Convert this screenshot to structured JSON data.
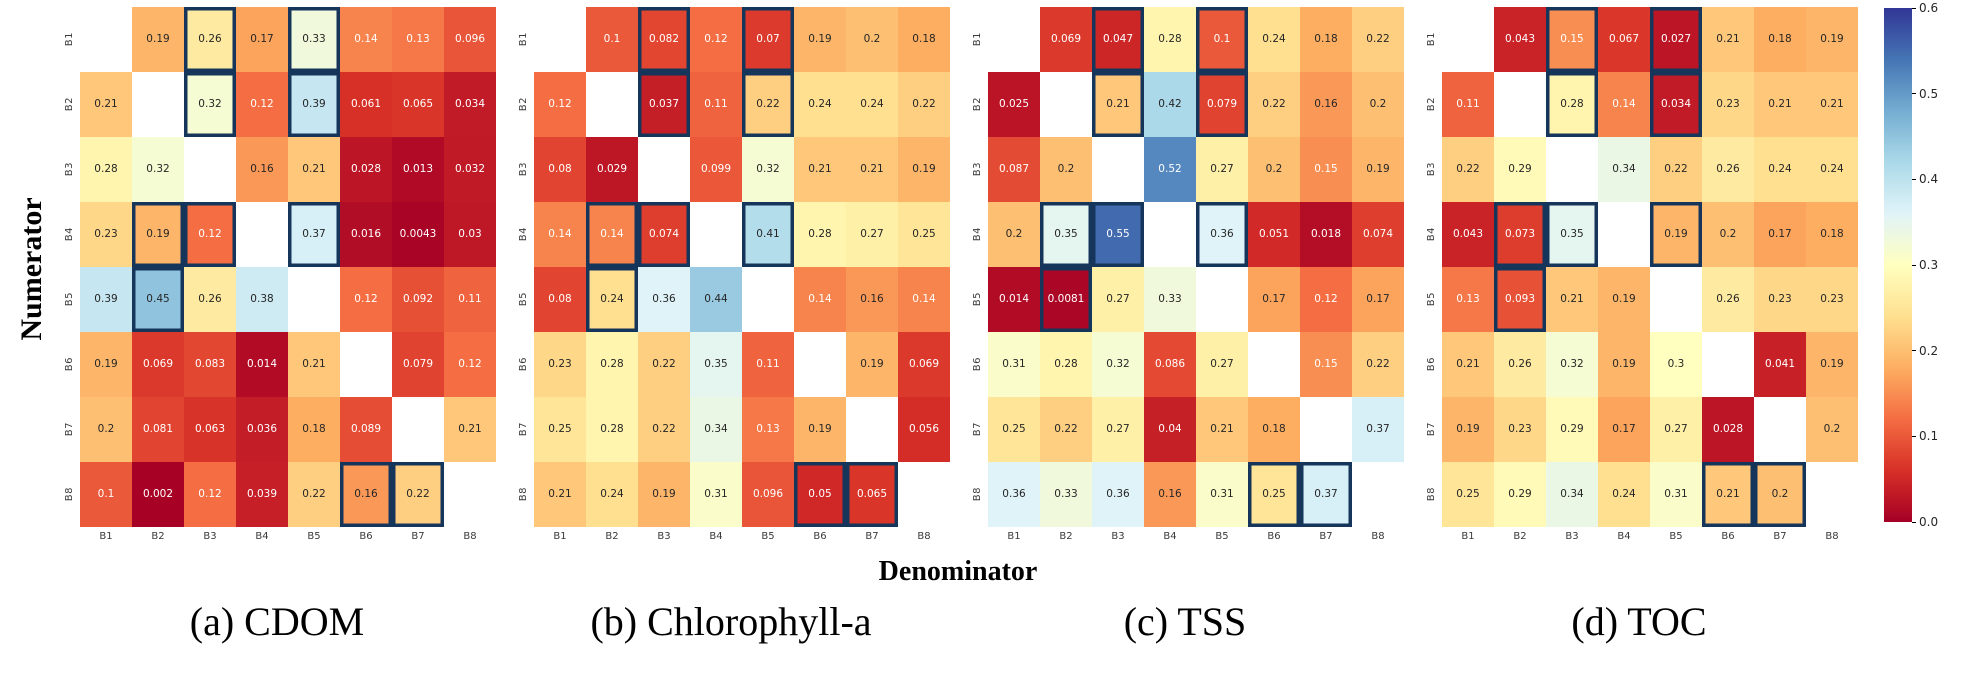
{
  "figure": {
    "ylabel": "Numerator",
    "xlabel": "Denominator",
    "tick_labels": [
      "B1",
      "B2",
      "B3",
      "B4",
      "B5",
      "B6",
      "B7",
      "B8"
    ],
    "highlight_border_color": "#16355b",
    "colorbar": {
      "vmin": 0.0,
      "vmax": 0.6,
      "tick_labels": [
        "0.6",
        "0.5",
        "0.4",
        "0.3",
        "0.2",
        "0.1",
        "0.0"
      ],
      "colormap": "RdYlBu",
      "colormap_stops": [
        "#a50026",
        "#d73027",
        "#f46d43",
        "#fdae61",
        "#fee090",
        "#ffffbf",
        "#e0f3f8",
        "#abd9e9",
        "#74add1",
        "#4575b4",
        "#313695"
      ]
    }
  },
  "chart_data": [
    {
      "type": "heatmap",
      "caption": "(a) CDOM",
      "x_categories": [
        "B1",
        "B2",
        "B3",
        "B4",
        "B5",
        "B6",
        "B7",
        "B8"
      ],
      "y_categories": [
        "B1",
        "B2",
        "B3",
        "B4",
        "B5",
        "B6",
        "B7",
        "B8"
      ],
      "vmin": 0.0,
      "vmax": 0.6,
      "values": [
        [
          null,
          0.19,
          0.26,
          0.17,
          0.33,
          0.14,
          0.13,
          0.096
        ],
        [
          0.21,
          null,
          0.32,
          0.12,
          0.39,
          0.061,
          0.065,
          0.034
        ],
        [
          0.28,
          0.32,
          null,
          0.16,
          0.21,
          0.028,
          0.013,
          0.032
        ],
        [
          0.23,
          0.19,
          0.12,
          null,
          0.37,
          0.016,
          0.0043,
          0.03
        ],
        [
          0.39,
          0.45,
          0.26,
          0.38,
          null,
          0.12,
          0.092,
          0.11
        ],
        [
          0.19,
          0.069,
          0.083,
          0.014,
          0.21,
          null,
          0.079,
          0.12
        ],
        [
          0.2,
          0.081,
          0.063,
          0.036,
          0.18,
          0.089,
          null,
          0.21
        ],
        [
          0.1,
          0.002,
          0.12,
          0.039,
          0.22,
          0.16,
          0.22,
          null
        ]
      ],
      "highlighted_cells": [
        [
          0,
          2
        ],
        [
          0,
          4
        ],
        [
          1,
          2
        ],
        [
          1,
          4
        ],
        [
          3,
          1
        ],
        [
          3,
          2
        ],
        [
          3,
          4
        ],
        [
          4,
          1
        ],
        [
          7,
          5
        ],
        [
          7,
          6
        ]
      ]
    },
    {
      "type": "heatmap",
      "caption": "(b) Chlorophyll-a",
      "x_categories": [
        "B1",
        "B2",
        "B3",
        "B4",
        "B5",
        "B6",
        "B7",
        "B8"
      ],
      "y_categories": [
        "B1",
        "B2",
        "B3",
        "B4",
        "B5",
        "B6",
        "B7",
        "B8"
      ],
      "vmin": 0.0,
      "vmax": 0.6,
      "values": [
        [
          null,
          0.1,
          0.082,
          0.12,
          0.07,
          0.19,
          0.2,
          0.18
        ],
        [
          0.12,
          null,
          0.037,
          0.11,
          0.22,
          0.24,
          0.24,
          0.22
        ],
        [
          0.08,
          0.029,
          null,
          0.099,
          0.32,
          0.21,
          0.21,
          0.19
        ],
        [
          0.14,
          0.14,
          0.074,
          null,
          0.41,
          0.28,
          0.27,
          0.25
        ],
        [
          0.08,
          0.24,
          0.36,
          0.44,
          null,
          0.14,
          0.16,
          0.14
        ],
        [
          0.23,
          0.28,
          0.22,
          0.35,
          0.11,
          null,
          0.19,
          0.069
        ],
        [
          0.25,
          0.28,
          0.22,
          0.34,
          0.13,
          0.19,
          null,
          0.056
        ],
        [
          0.21,
          0.24,
          0.19,
          0.31,
          0.096,
          0.05,
          0.065,
          null
        ]
      ],
      "highlighted_cells": [
        [
          0,
          2
        ],
        [
          0,
          4
        ],
        [
          1,
          2
        ],
        [
          1,
          4
        ],
        [
          3,
          1
        ],
        [
          3,
          2
        ],
        [
          3,
          4
        ],
        [
          4,
          1
        ],
        [
          7,
          5
        ],
        [
          7,
          6
        ]
      ]
    },
    {
      "type": "heatmap",
      "caption": "(c) TSS",
      "x_categories": [
        "B1",
        "B2",
        "B3",
        "B4",
        "B5",
        "B6",
        "B7",
        "B8"
      ],
      "y_categories": [
        "B1",
        "B2",
        "B3",
        "B4",
        "B5",
        "B6",
        "B7",
        "B8"
      ],
      "vmin": 0.0,
      "vmax": 0.6,
      "values": [
        [
          null,
          0.069,
          0.047,
          0.28,
          0.1,
          0.24,
          0.18,
          0.22
        ],
        [
          0.025,
          null,
          0.21,
          0.42,
          0.079,
          0.22,
          0.16,
          0.2
        ],
        [
          0.087,
          0.2,
          null,
          0.52,
          0.27,
          0.2,
          0.15,
          0.19
        ],
        [
          0.2,
          0.35,
          0.55,
          null,
          0.36,
          0.051,
          0.018,
          0.074
        ],
        [
          0.014,
          0.0081,
          0.27,
          0.33,
          null,
          0.17,
          0.12,
          0.17
        ],
        [
          0.31,
          0.28,
          0.32,
          0.086,
          0.27,
          null,
          0.15,
          0.22
        ],
        [
          0.25,
          0.22,
          0.27,
          0.04,
          0.21,
          0.18,
          null,
          0.37
        ],
        [
          0.36,
          0.33,
          0.36,
          0.16,
          0.31,
          0.25,
          0.37,
          null
        ]
      ],
      "highlighted_cells": [
        [
          0,
          2
        ],
        [
          0,
          4
        ],
        [
          1,
          2
        ],
        [
          1,
          4
        ],
        [
          3,
          1
        ],
        [
          3,
          2
        ],
        [
          3,
          4
        ],
        [
          4,
          1
        ],
        [
          7,
          5
        ],
        [
          7,
          6
        ]
      ]
    },
    {
      "type": "heatmap",
      "caption": "(d) TOC",
      "x_categories": [
        "B1",
        "B2",
        "B3",
        "B4",
        "B5",
        "B6",
        "B7",
        "B8"
      ],
      "y_categories": [
        "B1",
        "B2",
        "B3",
        "B4",
        "B5",
        "B6",
        "B7",
        "B8"
      ],
      "vmin": 0.0,
      "vmax": 0.6,
      "values": [
        [
          null,
          0.043,
          0.15,
          0.067,
          0.027,
          0.21,
          0.18,
          0.19
        ],
        [
          0.11,
          null,
          0.28,
          0.14,
          0.034,
          0.23,
          0.21,
          0.21
        ],
        [
          0.22,
          0.29,
          null,
          0.34,
          0.22,
          0.26,
          0.24,
          0.24
        ],
        [
          0.043,
          0.073,
          0.35,
          null,
          0.19,
          0.2,
          0.17,
          0.18
        ],
        [
          0.13,
          0.093,
          0.21,
          0.19,
          null,
          0.26,
          0.23,
          0.23
        ],
        [
          0.21,
          0.26,
          0.32,
          0.19,
          0.3,
          null,
          0.041,
          0.19
        ],
        [
          0.19,
          0.23,
          0.29,
          0.17,
          0.27,
          0.028,
          null,
          0.2
        ],
        [
          0.25,
          0.29,
          0.34,
          0.24,
          0.31,
          0.21,
          0.2,
          null
        ]
      ],
      "highlighted_cells": [
        [
          0,
          2
        ],
        [
          0,
          4
        ],
        [
          1,
          2
        ],
        [
          1,
          4
        ],
        [
          3,
          1
        ],
        [
          3,
          2
        ],
        [
          3,
          4
        ],
        [
          4,
          1
        ],
        [
          7,
          5
        ],
        [
          7,
          6
        ]
      ]
    }
  ]
}
